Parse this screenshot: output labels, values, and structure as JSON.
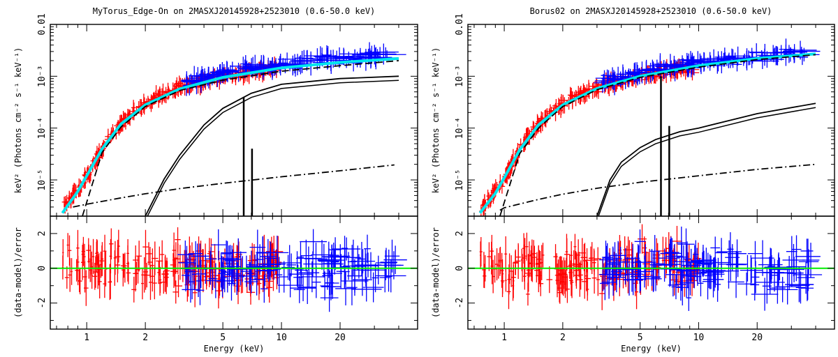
{
  "chart_data": [
    {
      "type": "scatter",
      "title": "MyTorus_Edge-On on 2MASXJ20145928+2523010 (0.6-50.0 keV)",
      "xlabel": "Energy (keV)",
      "x_scale": "log",
      "xlim": [
        0.65,
        50
      ],
      "x_ticks": [
        "1",
        "2",
        "5",
        "10",
        "20"
      ],
      "top_panel": {
        "ylabel": "keV² (Photons cm⁻² s⁻¹ keV⁻¹)",
        "y_scale": "log",
        "ylim": [
          2e-06,
          0.01
        ],
        "y_ticks": [
          "10⁻⁵",
          "10⁻⁴",
          "10⁻³",
          "0.01"
        ],
        "series": [
          {
            "instrument": "red",
            "color": "#ff0000",
            "x": [
              0.75,
              0.85,
              0.95,
              1.05,
              1.15,
              1.3,
              1.5,
              1.7,
              2.0,
              2.3,
              2.6,
              3.0,
              3.5,
              4.0,
              5.0,
              6.0,
              7.0,
              8.0,
              9.5
            ],
            "y": [
              2.8e-06,
              5e-06,
              8e-06,
              1.6e-05,
              3e-05,
              6.5e-05,
              0.00012,
              0.00019,
              0.00029,
              0.00039,
              0.00049,
              0.0006,
              0.0007,
              0.0008,
              0.00095,
              0.0011,
              0.0012,
              0.0013,
              0.00135
            ]
          },
          {
            "instrument": "blue",
            "color": "#0000ff",
            "x": [
              3.2,
              3.6,
              4.0,
              4.5,
              5.0,
              6.0,
              7.0,
              8.0,
              9.0,
              10,
              12,
              14,
              17,
              20,
              25,
              30,
              35
            ],
            "y": [
              0.0008,
              0.0009,
              0.00098,
              0.00105,
              0.00115,
              0.0013,
              0.0014,
              0.0015,
              0.00155,
              0.00165,
              0.0018,
              0.00195,
              0.0021,
              0.0022,
              0.0023,
              0.0024,
              0.0025
            ]
          }
        ],
        "models": [
          {
            "name": "total",
            "color": "#00e5ee",
            "x": [
              0.75,
              0.9,
              1.0,
              1.2,
              1.5,
              2.0,
              3.0,
              5.0,
              10,
              20,
              40
            ],
            "y": [
              2.3e-06,
              6e-06,
              1.2e-05,
              4e-05,
              0.00012,
              0.00028,
              0.00057,
              0.00095,
              0.00145,
              0.00185,
              0.0022
            ]
          },
          {
            "name": "absorbed",
            "color": "#000000",
            "x": [
              0.95,
              1.2,
              1.5,
              2.0,
              3.0,
              5.0,
              10,
              20,
              40
            ],
            "y": [
              2e-06,
              3.4e-05,
              0.000105,
              0.00026,
              0.00053,
              0.00084,
              0.00125,
              0.0016,
              0.002
            ]
          },
          {
            "name": "scattered",
            "color": "#000000",
            "x": [
              0.85,
              1.0,
              1.5,
              2.0,
              3.0,
              5.0,
              10,
              20,
              38
            ],
            "y": [
              3e-06,
              3.4e-06,
              4.5e-06,
              5.4e-06,
              6.8e-06,
              8.6e-06,
              1.15e-05,
              1.5e-05,
              1.95e-05
            ]
          },
          {
            "name": "reflected",
            "color": "#000000",
            "x": [
              2.0,
              2.5,
              3.0,
              4.0,
              5.0,
              7.0,
              10,
              20,
              40
            ],
            "y": [
              2e-06,
              1.05e-05,
              3e-05,
              0.000115,
              0.00024,
              0.00047,
              0.0007,
              0.0009,
              0.001
            ]
          }
        ]
      },
      "bottom_panel": {
        "ylabel": "(data-model)/error",
        "ylim": [
          -3.5,
          3.0
        ],
        "y_ticks": [
          "-2",
          "0",
          "2"
        ]
      }
    },
    {
      "type": "scatter",
      "title": "Borus02 on 2MASXJ20145928+2523010 (0.6-50.0 keV)",
      "xlabel": "Energy (keV)",
      "x_scale": "log",
      "xlim": [
        0.65,
        50
      ],
      "x_ticks": [
        "1",
        "2",
        "5",
        "10",
        "20"
      ],
      "top_panel": {
        "ylabel": "keV² (Photons cm⁻² s⁻¹ keV⁻¹)",
        "y_scale": "log",
        "ylim": [
          2e-06,
          0.01
        ],
        "y_ticks": [
          "10⁻⁵",
          "10⁻⁴",
          "10⁻³",
          "0.01"
        ],
        "series": [
          {
            "instrument": "red",
            "color": "#ff0000",
            "x": [
              0.75,
              0.85,
              0.95,
              1.05,
              1.15,
              1.3,
              1.5,
              1.7,
              2.0,
              2.3,
              2.6,
              3.0,
              3.5,
              4.0,
              5.0,
              6.0,
              7.0,
              8.0,
              9.5
            ],
            "y": [
              2.6e-06,
              4.5e-06,
              7.5e-06,
              1.5e-05,
              2.8e-05,
              6e-05,
              0.000115,
              0.00019,
              0.0003,
              0.0004,
              0.0005,
              0.00062,
              0.00072,
              0.00082,
              0.00098,
              0.00115,
              0.00125,
              0.00135,
              0.0014
            ]
          },
          {
            "instrument": "blue",
            "color": "#0000ff",
            "x": [
              3.2,
              3.6,
              4.0,
              4.5,
              5.0,
              6.0,
              7.0,
              8.0,
              9.0,
              10,
              12,
              14,
              17,
              20,
              25,
              30,
              35
            ],
            "y": [
              0.00075,
              0.00085,
              0.00095,
              0.00105,
              0.00115,
              0.0014,
              0.0015,
              0.0016,
              0.0017,
              0.0018,
              0.00195,
              0.0021,
              0.0023,
              0.0024,
              0.00255,
              0.0027,
              0.0028
            ]
          }
        ],
        "models": [
          {
            "name": "total",
            "color": "#00e5ee",
            "x": [
              0.75,
              0.9,
              1.0,
              1.2,
              1.5,
              2.0,
              3.0,
              5.0,
              10,
              20,
              40
            ],
            "y": [
              2.3e-06,
              5.5e-06,
              1.1e-05,
              3.8e-05,
              0.000115,
              0.00028,
              0.00058,
              0.001,
              0.0016,
              0.0022,
              0.0027
            ]
          },
          {
            "name": "absorbed",
            "color": "#000000",
            "x": [
              0.95,
              1.2,
              1.5,
              2.0,
              3.0,
              5.0,
              10,
              20,
              40
            ],
            "y": [
              2e-06,
              3.2e-05,
              0.0001,
              0.00026,
              0.00055,
              0.00095,
              0.0015,
              0.0021,
              0.0026
            ]
          },
          {
            "name": "scattered",
            "color": "#000000",
            "x": [
              0.95,
              1.0,
              1.5,
              2.0,
              3.0,
              5.0,
              10,
              20,
              40
            ],
            "y": [
              2.6e-06,
              2.9e-06,
              4.2e-06,
              5.3e-06,
              6.9e-06,
              9e-06,
              1.2e-05,
              1.6e-05,
              2e-05
            ]
          },
          {
            "name": "reflected",
            "color": "#000000",
            "x": [
              3.0,
              3.5,
              4.0,
              5.0,
              6.0,
              8.0,
              10,
              20,
              40
            ],
            "y": [
              2e-06,
              1e-05,
              2.2e-05,
              4.2e-05,
              6e-05,
              8.5e-05,
              0.0001,
              0.00019,
              0.0003
            ]
          }
        ]
      },
      "bottom_panel": {
        "ylabel": "(data-model)/error",
        "ylim": [
          -3.5,
          3.0
        ],
        "y_ticks": [
          "-2",
          "0",
          "2"
        ]
      }
    }
  ]
}
